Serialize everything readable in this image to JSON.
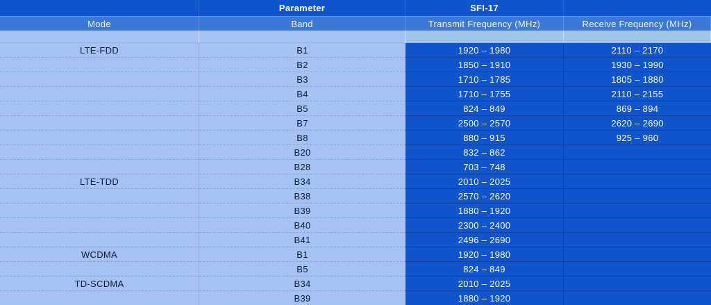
{
  "table": {
    "header_row1": {
      "parameter_label": "Parameter",
      "device_label": "SFI-17"
    },
    "header_row2": {
      "mode": "Mode",
      "band": "Band",
      "transmit": "Transmit Frequency (MHz)",
      "receive": "Receive Frequency (MHz)"
    },
    "rows": [
      {
        "mode": "LTE-FDD",
        "band": "B1",
        "tx": "1920 – 1980",
        "rx": "2110 – 2170"
      },
      {
        "mode": "",
        "band": "B2",
        "tx": "1850 – 1910",
        "rx": "1930 – 1990"
      },
      {
        "mode": "",
        "band": "B3",
        "tx": "1710 – 1785",
        "rx": "1805 – 1880"
      },
      {
        "mode": "",
        "band": "B4",
        "tx": "1710 – 1755",
        "rx": "2110 – 2155"
      },
      {
        "mode": "",
        "band": "B5",
        "tx": "824 – 849",
        "rx": "869 – 894"
      },
      {
        "mode": "",
        "band": "B7",
        "tx": "2500 – 2570",
        "rx": "2620 – 2690"
      },
      {
        "mode": "",
        "band": "B8",
        "tx": "880 – 915",
        "rx": "925 – 960"
      },
      {
        "mode": "",
        "band": "B20",
        "tx": "832 – 862",
        "rx": ""
      },
      {
        "mode": "",
        "band": "B28",
        "tx": "703 – 748",
        "rx": ""
      },
      {
        "mode": "LTE-TDD",
        "band": "B34",
        "tx": "2010 – 2025",
        "rx": ""
      },
      {
        "mode": "",
        "band": "B38",
        "tx": "2570 – 2620",
        "rx": ""
      },
      {
        "mode": "",
        "band": "B39",
        "tx": "1880 – 1920",
        "rx": ""
      },
      {
        "mode": "",
        "band": "B40",
        "tx": "2300 – 2400",
        "rx": ""
      },
      {
        "mode": "",
        "band": "B41",
        "tx": "2496 – 2690",
        "rx": ""
      },
      {
        "mode": "WCDMA",
        "band": "B1",
        "tx": "1920 – 1980",
        "rx": ""
      },
      {
        "mode": "",
        "band": "B5",
        "tx": "824 – 849",
        "rx": ""
      },
      {
        "mode": "TD-SCDMA",
        "band": "B34",
        "tx": "2010 – 2025",
        "rx": ""
      },
      {
        "mode": "",
        "band": "B39",
        "tx": "1880 – 1920",
        "rx": ""
      }
    ]
  },
  "colors": {
    "header_dark_blue": "#1155cc",
    "header_medium_blue": "#3c78d8",
    "data_light_periwinkle": "#a4c2f4",
    "spacer_light_blue": "#9fc5e8",
    "frequency_cell_dark_blue": "#1155cc",
    "light_cell_text": "#0e1c38",
    "dark_cell_text": "#ffffff"
  }
}
